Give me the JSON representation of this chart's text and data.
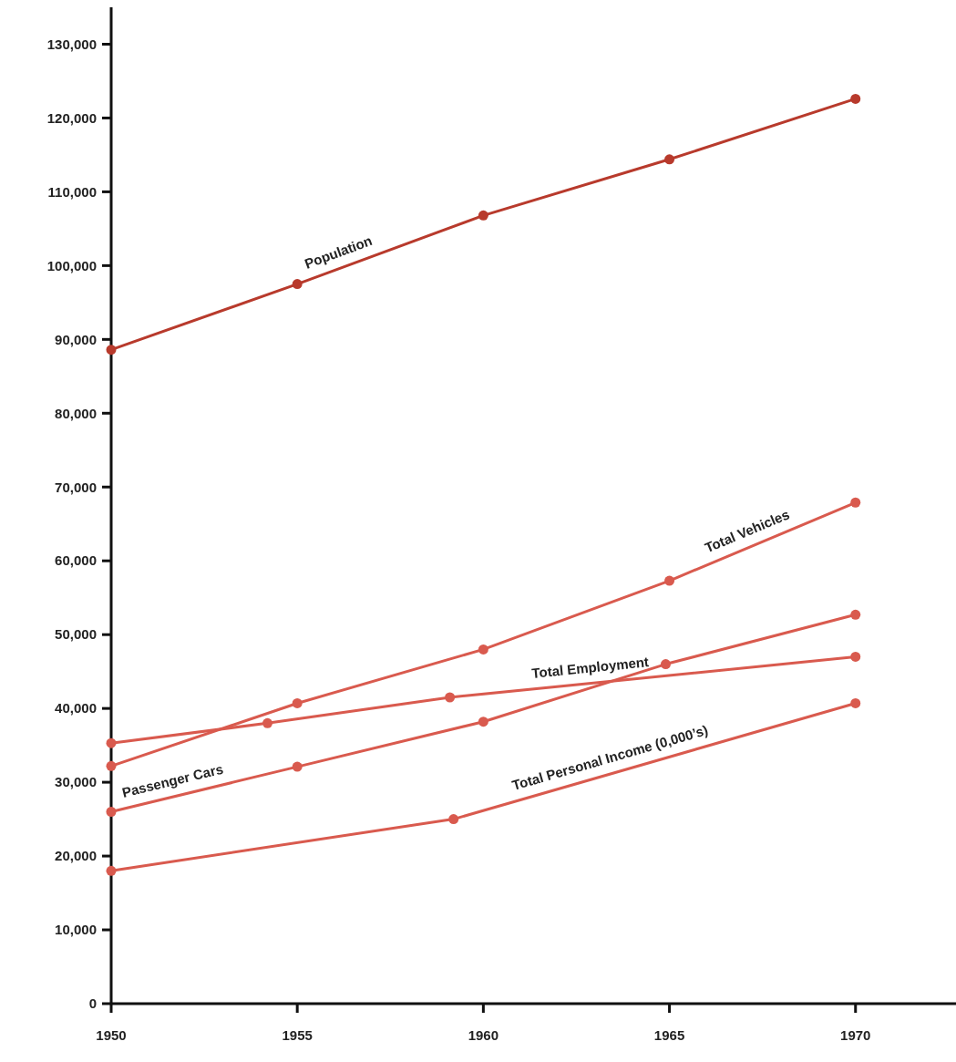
{
  "chart_data": {
    "type": "line",
    "xlim": [
      1950,
      1972.7
    ],
    "xticks": [
      1950,
      1955,
      1960,
      1965,
      1970
    ],
    "ylim": [
      0,
      135000
    ],
    "yticks": [
      {
        "value": 0,
        "label": "0"
      },
      {
        "value": 10000,
        "label": "10,000"
      },
      {
        "value": 20000,
        "label": "20,000"
      },
      {
        "value": 30000,
        "label": "30,000"
      },
      {
        "value": 40000,
        "label": "40,000"
      },
      {
        "value": 50000,
        "label": "50,000"
      },
      {
        "value": 60000,
        "label": "60,000"
      },
      {
        "value": 70000,
        "label": "70,000"
      },
      {
        "value": 80000,
        "label": "80,000"
      },
      {
        "value": 90000,
        "label": "90,000"
      },
      {
        "value": 100000,
        "label": "100,000"
      },
      {
        "value": 110000,
        "label": "110,000"
      },
      {
        "value": 120000,
        "label": "120,000"
      },
      {
        "value": 130000,
        "label": "130,000"
      }
    ],
    "grid": false,
    "marker": "circle",
    "line_style": "solid",
    "series": [
      {
        "name": "Population",
        "color": "#b83a2c",
        "x": [
          1950,
          1955,
          1960,
          1965,
          1970
        ],
        "values": [
          88600,
          97500,
          106800,
          114400,
          122600
        ]
      },
      {
        "name": "Total Vehicles",
        "color": "#d95a4e",
        "x": [
          1950,
          1955,
          1960,
          1965,
          1970
        ],
        "values": [
          32200,
          40700,
          48000,
          57300,
          67900
        ]
      },
      {
        "name": "Total Employment",
        "color": "#d95a4e",
        "x": [
          1950,
          1954.2,
          1959.1,
          1970
        ],
        "values": [
          35300,
          38000,
          41500,
          47000
        ]
      },
      {
        "name": "Passenger Cars",
        "color": "#d95a4e",
        "x": [
          1950,
          1955,
          1960,
          1964.9,
          1970
        ],
        "values": [
          26000,
          32100,
          38200,
          46000,
          52700
        ]
      },
      {
        "name": "Total Personal Income (0,000’s)",
        "color": "#d95a4e",
        "x": [
          1950,
          1959.2,
          1970
        ],
        "values": [
          18000,
          25000,
          40700
        ]
      }
    ]
  }
}
